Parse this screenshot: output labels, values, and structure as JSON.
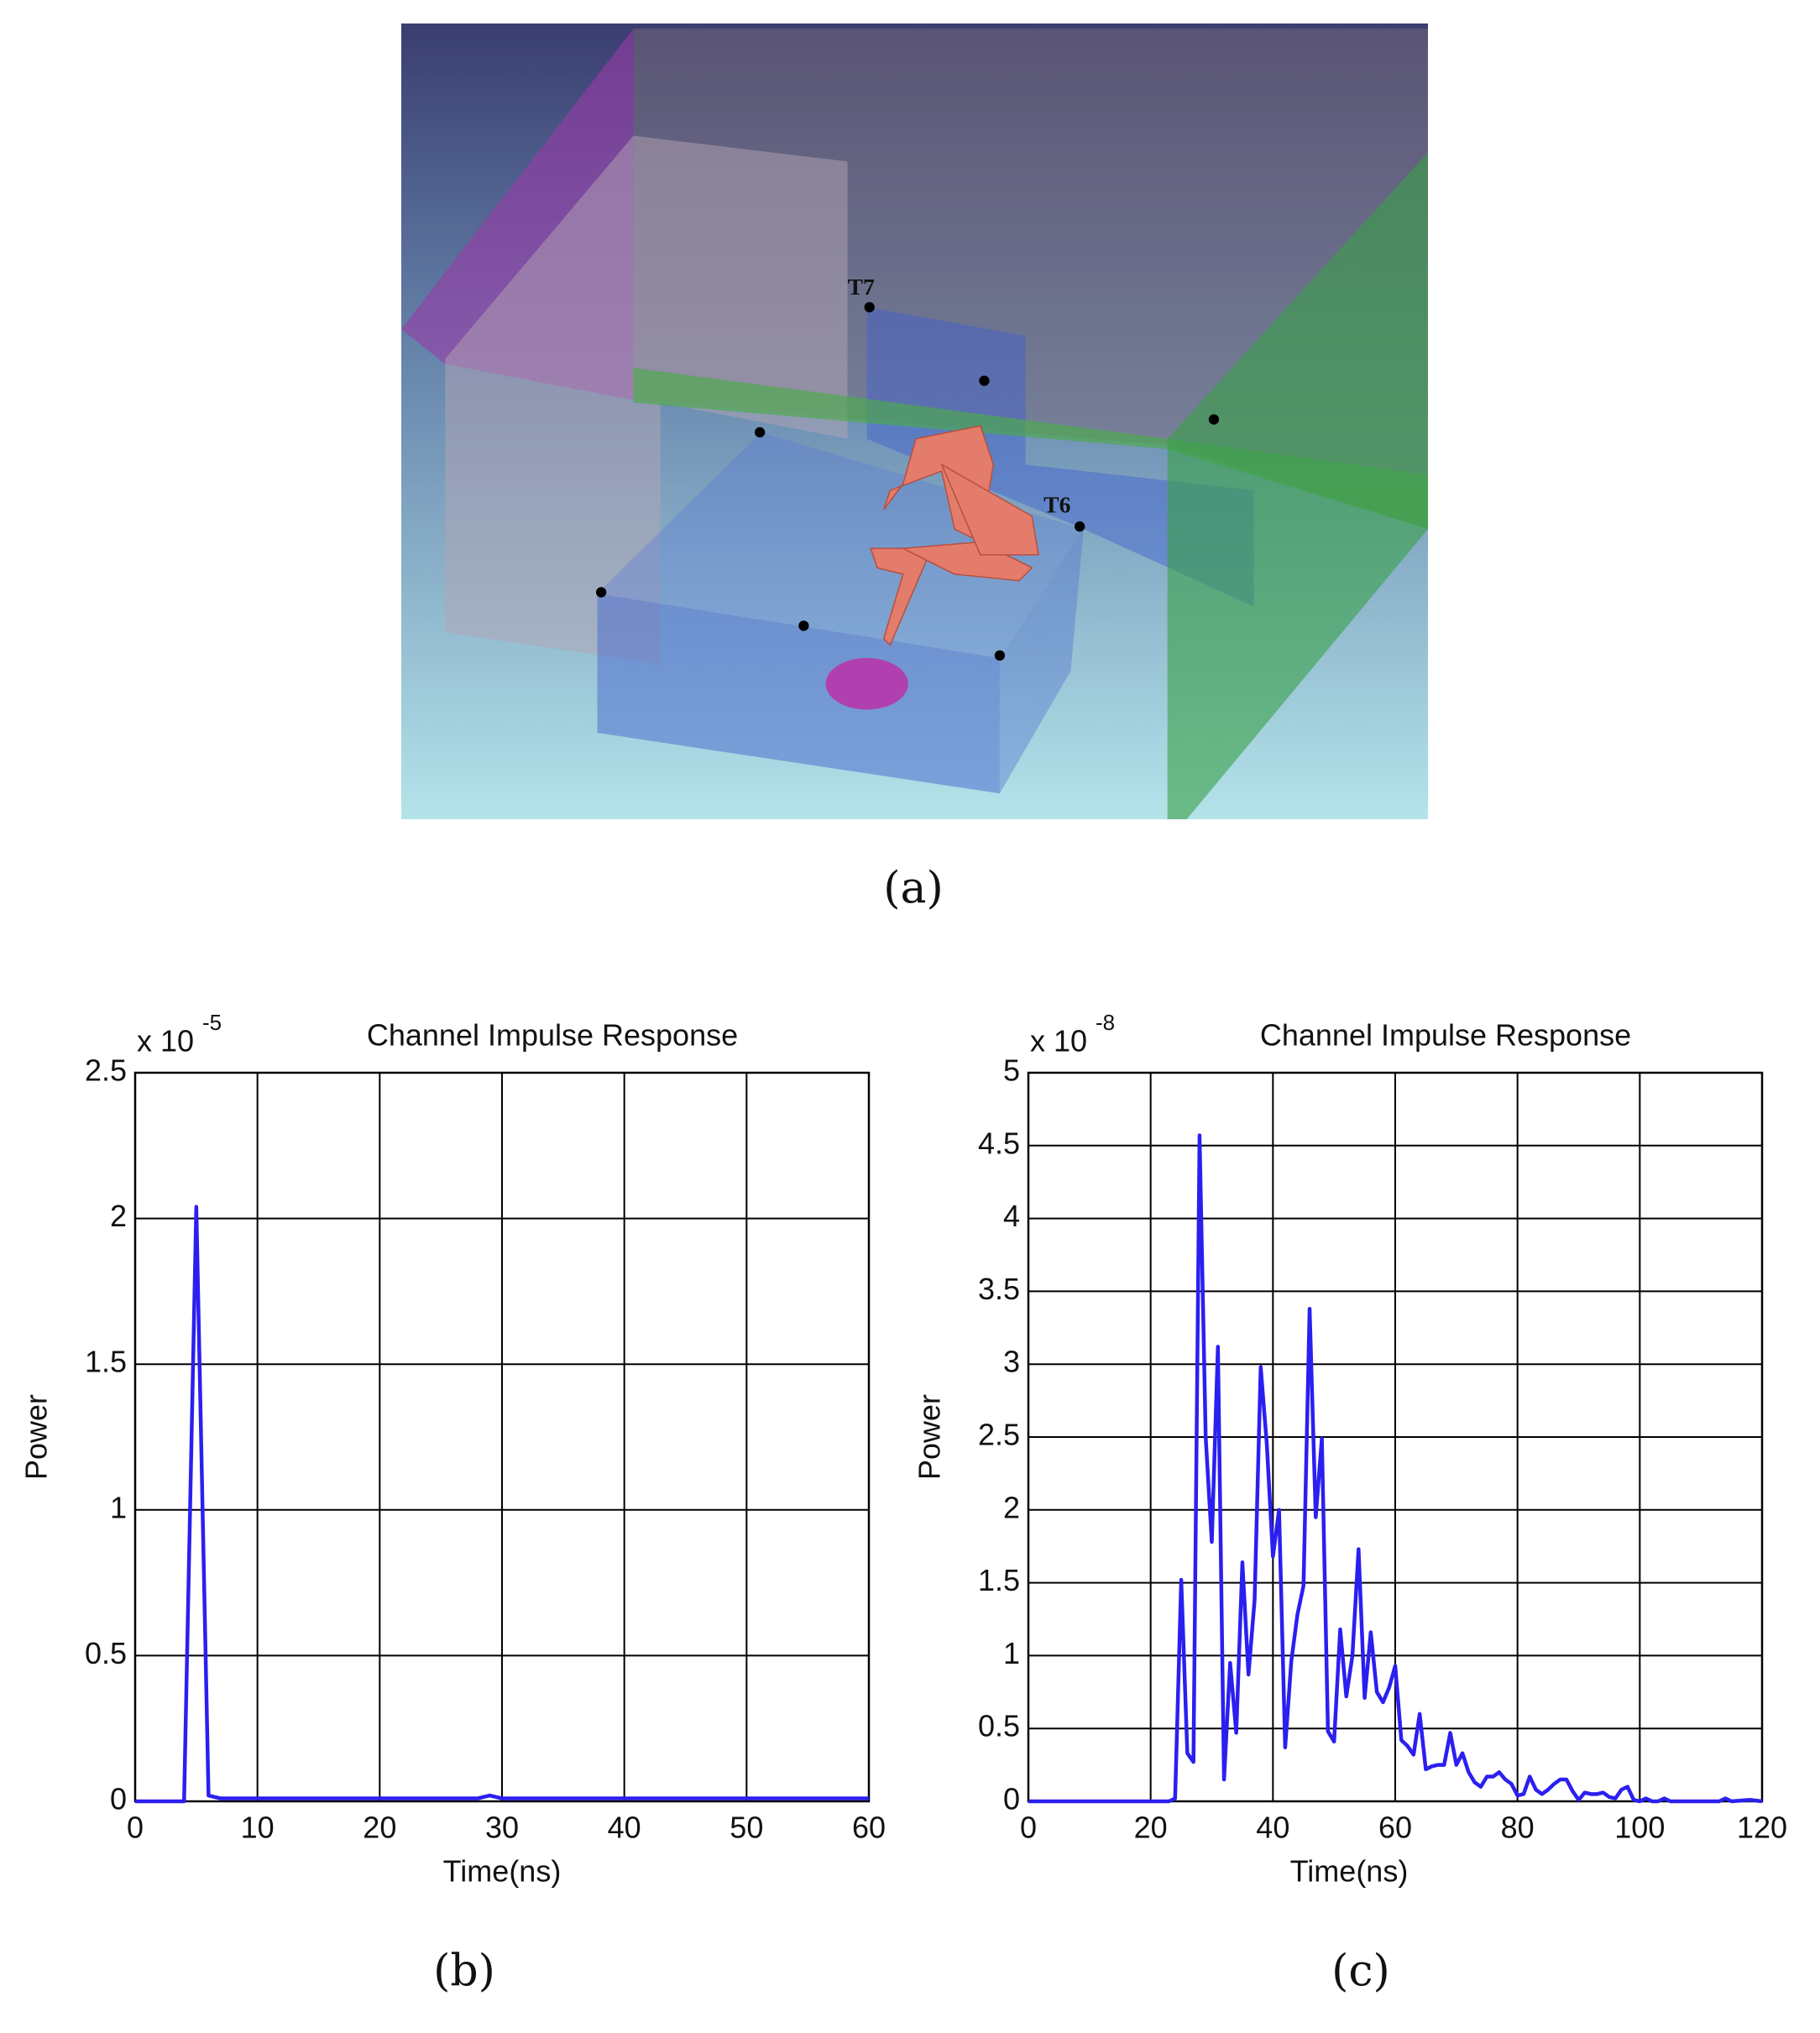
{
  "scene": {
    "markers": [
      "T7",
      "T6"
    ],
    "caption": "(a)"
  },
  "chart_data": [
    {
      "type": "line",
      "title": "Channel Impulse Response",
      "x_label": "Time(ns)",
      "y_label": "Power",
      "y_scale": {
        "base": "x 10",
        "exponent": "-5"
      },
      "x": [
        0,
        4,
        5,
        6,
        7,
        28,
        29,
        30,
        60
      ],
      "series": [
        {
          "color": "#2b1ff0",
          "values": [
            0,
            0,
            2.04,
            0.02,
            0.01,
            0.01,
            0.02,
            0.01,
            0.01
          ]
        }
      ],
      "xlim": [
        0,
        60
      ],
      "ylim": [
        0,
        2.5
      ],
      "xticks": [
        0,
        10,
        20,
        30,
        40,
        50,
        60
      ],
      "yticks": [
        0,
        0.5,
        1,
        1.5,
        2,
        2.5
      ],
      "grid": true,
      "caption": "(b)"
    },
    {
      "type": "line",
      "title": "Channel Impulse Response",
      "x_label": "Time(ns)",
      "y_label": "Power",
      "y_scale": {
        "base": "x 10",
        "exponent": "-8"
      },
      "x": [
        0,
        23,
        24,
        25,
        26,
        27,
        28,
        29,
        30,
        31,
        32,
        33,
        34,
        35,
        36,
        37,
        38,
        39,
        40,
        41,
        42,
        43,
        44,
        45,
        46,
        47,
        48,
        49,
        50,
        51,
        52,
        53,
        54,
        55,
        56,
        57,
        58,
        59,
        60,
        61,
        62,
        63,
        64,
        65,
        66,
        67,
        68,
        69,
        70,
        71,
        72,
        73,
        74,
        75,
        76,
        77,
        78,
        79,
        80,
        81,
        82,
        83,
        84,
        85,
        86,
        87,
        88,
        89,
        90,
        91,
        92,
        93,
        94,
        95,
        96,
        97,
        98,
        99,
        100,
        101,
        102,
        103,
        104,
        105,
        113,
        114,
        115,
        118,
        120
      ],
      "series": [
        {
          "color": "#2b1ff0",
          "values": [
            0,
            0,
            0.02,
            1.52,
            0.33,
            0.27,
            4.57,
            2.5,
            1.78,
            3.12,
            0.15,
            0.95,
            0.47,
            1.64,
            0.87,
            1.38,
            2.98,
            2.45,
            1.68,
            2.0,
            0.37,
            0.96,
            1.28,
            1.48,
            3.38,
            1.95,
            2.49,
            0.48,
            0.41,
            1.18,
            0.72,
            1.0,
            1.73,
            0.71,
            1.16,
            0.75,
            0.68,
            0.78,
            0.93,
            0.42,
            0.38,
            0.32,
            0.6,
            0.22,
            0.24,
            0.25,
            0.25,
            0.47,
            0.25,
            0.33,
            0.2,
            0.13,
            0.1,
            0.17,
            0.17,
            0.2,
            0.15,
            0.12,
            0.04,
            0.05,
            0.17,
            0.08,
            0.05,
            0.08,
            0.12,
            0.15,
            0.15,
            0.07,
            0.01,
            0.06,
            0.05,
            0.05,
            0.06,
            0.03,
            0.02,
            0.08,
            0.1,
            0.01,
            0,
            0.02,
            0,
            0,
            0.02,
            0,
            0,
            0.02,
            0,
            0.01,
            0
          ]
        }
      ],
      "xlim": [
        0,
        120
      ],
      "ylim": [
        0,
        5
      ],
      "xticks": [
        0,
        20,
        40,
        60,
        80,
        100,
        120
      ],
      "yticks": [
        0,
        0.5,
        1,
        1.5,
        2,
        2.5,
        3,
        3.5,
        4,
        4.5,
        5
      ],
      "grid": true,
      "caption": "(c)"
    }
  ]
}
